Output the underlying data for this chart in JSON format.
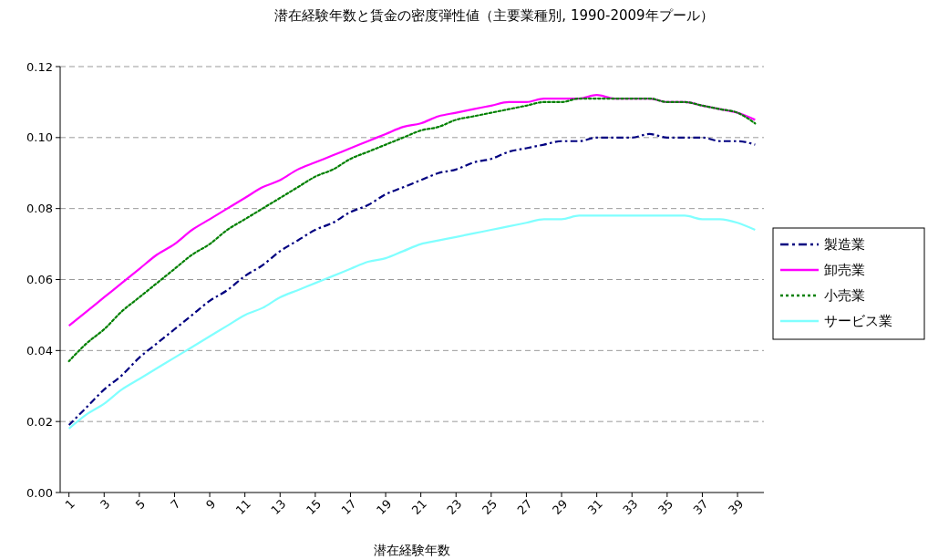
{
  "chart_data": {
    "type": "line",
    "title": "潜在経験年数と賃金の密度弾性値（主要業種別, 1990-2009年プール）",
    "xlabel": "潜在経験年数",
    "x": [
      1,
      2,
      3,
      4,
      5,
      6,
      7,
      8,
      9,
      10,
      11,
      12,
      13,
      14,
      15,
      16,
      17,
      18,
      19,
      20,
      21,
      22,
      23,
      24,
      25,
      26,
      27,
      28,
      29,
      30,
      31,
      32,
      33,
      34,
      35,
      36,
      37,
      38,
      39,
      40
    ],
    "xlim": [
      0.5,
      40.5
    ],
    "xticks": [
      1,
      3,
      5,
      7,
      9,
      11,
      13,
      15,
      17,
      19,
      21,
      23,
      25,
      27,
      29,
      31,
      33,
      35,
      37,
      39
    ],
    "series": [
      {
        "name": "製造業",
        "color": "#000080",
        "line_style": "dashed",
        "values": [
          0.019,
          0.024,
          0.029,
          0.033,
          0.038,
          0.042,
          0.046,
          0.05,
          0.054,
          0.057,
          0.061,
          0.064,
          0.068,
          0.071,
          0.074,
          0.076,
          0.079,
          0.081,
          0.084,
          0.086,
          0.088,
          0.09,
          0.091,
          0.093,
          0.094,
          0.096,
          0.097,
          0.098,
          0.099,
          0.099,
          0.1,
          0.1,
          0.1,
          0.101,
          0.1,
          0.1,
          0.1,
          0.099,
          0.099,
          0.098
        ]
      },
      {
        "name": "卸売業",
        "color": "#ff00ff",
        "line_style": "solid",
        "values": [
          0.047,
          0.051,
          0.055,
          0.059,
          0.063,
          0.067,
          0.07,
          0.074,
          0.077,
          0.08,
          0.083,
          0.086,
          0.088,
          0.091,
          0.093,
          0.095,
          0.097,
          0.099,
          0.101,
          0.103,
          0.104,
          0.106,
          0.107,
          0.108,
          0.109,
          0.11,
          0.11,
          0.111,
          0.111,
          0.111,
          0.112,
          0.111,
          0.111,
          0.111,
          0.11,
          0.11,
          0.109,
          0.108,
          0.107,
          0.105
        ]
      },
      {
        "name": "小売業",
        "color": "#008000",
        "line_style": "dotted",
        "values": [
          0.037,
          0.042,
          0.046,
          0.051,
          0.055,
          0.059,
          0.063,
          0.067,
          0.07,
          0.074,
          0.077,
          0.08,
          0.083,
          0.086,
          0.089,
          0.091,
          0.094,
          0.096,
          0.098,
          0.1,
          0.102,
          0.103,
          0.105,
          0.106,
          0.107,
          0.108,
          0.109,
          0.11,
          0.11,
          0.111,
          0.111,
          0.111,
          0.111,
          0.111,
          0.11,
          0.11,
          0.109,
          0.108,
          0.107,
          0.104
        ]
      },
      {
        "name": "サービス業",
        "color": "#80ffff",
        "line_style": "solid",
        "values": [
          0.018,
          0.022,
          0.025,
          0.029,
          0.032,
          0.035,
          0.038,
          0.041,
          0.044,
          0.047,
          0.05,
          0.052,
          0.055,
          0.057,
          0.059,
          0.061,
          0.063,
          0.065,
          0.066,
          0.068,
          0.07,
          0.071,
          0.072,
          0.073,
          0.074,
          0.075,
          0.076,
          0.077,
          0.077,
          0.078,
          0.078,
          0.078,
          0.078,
          0.078,
          0.078,
          0.078,
          0.077,
          0.077,
          0.076,
          0.074
        ]
      }
    ],
    "ylim": [
      0,
      0.12
    ],
    "yticks": [
      {
        "value": 0,
        "label": "0.00"
      },
      {
        "value": 0.02,
        "label": "0.02"
      },
      {
        "value": 0.04,
        "label": "0.04"
      },
      {
        "value": 0.06,
        "label": "0.06"
      },
      {
        "value": 0.08,
        "label": "0.08"
      },
      {
        "value": 0.1,
        "label": "0.10"
      },
      {
        "value": 0.12,
        "label": "0.12"
      }
    ],
    "grid": "y",
    "legend": "right",
    "marker": "none"
  }
}
